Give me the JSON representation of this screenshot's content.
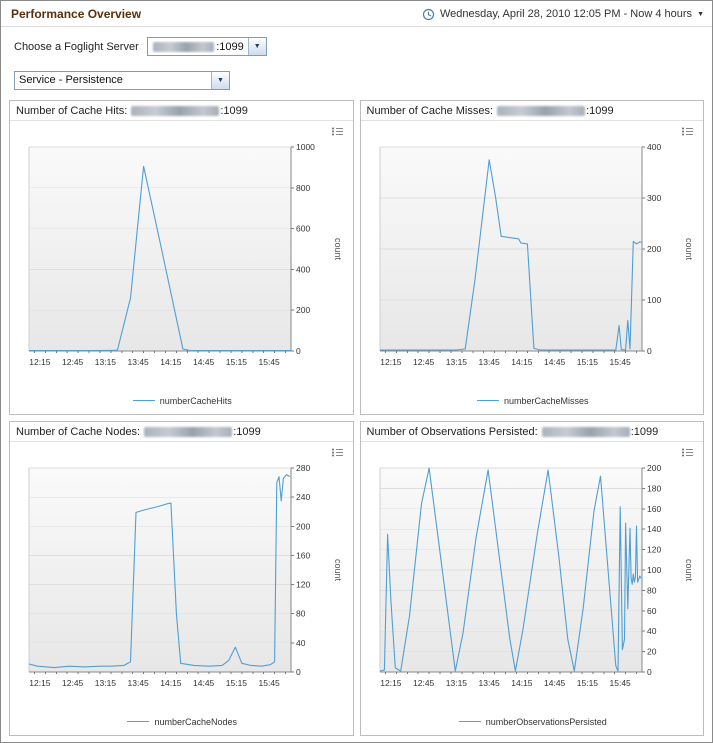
{
  "page": {
    "title": "Performance Overview"
  },
  "header": {
    "time_range": "Wednesday, April 28, 2010 12:05 PM - Now 4 hours"
  },
  "icons": {
    "caret_down": "▼"
  },
  "server_selector": {
    "label": "Choose a Foglight Server",
    "value_suffix": ":1099"
  },
  "service_selector": {
    "value": "Service - Persistence"
  },
  "chart_data": [
    {
      "type": "line",
      "title_prefix": "Number of Cache Hits:",
      "server_suffix": ":1099",
      "legend": "numberCacheHits",
      "ylabel": "count",
      "color": "#4f9fd4",
      "ylim": [
        0,
        1000
      ],
      "ytick_step": 200,
      "x_range_minutes": [
        725,
        965
      ],
      "x_tick_minutes": [
        735,
        765,
        795,
        825,
        855,
        885,
        915,
        945
      ],
      "x_tick_labels": [
        "12:15",
        "12:45",
        "13:15",
        "13:45",
        "14:15",
        "14:45",
        "15:15",
        "15:45"
      ],
      "points": [
        [
          725,
          2
        ],
        [
          745,
          2
        ],
        [
          765,
          2
        ],
        [
          785,
          2
        ],
        [
          800,
          3
        ],
        [
          806,
          4
        ],
        [
          818,
          260
        ],
        [
          830,
          905
        ],
        [
          842,
          610
        ],
        [
          855,
          285
        ],
        [
          866,
          10
        ],
        [
          872,
          3
        ],
        [
          890,
          2
        ],
        [
          910,
          2
        ],
        [
          930,
          2
        ],
        [
          950,
          2
        ],
        [
          965,
          2
        ]
      ]
    },
    {
      "type": "line",
      "title_prefix": "Number of Cache Misses:",
      "server_suffix": ":1099",
      "legend": "numberCacheMisses",
      "ylabel": "count",
      "color": "#4f9fd4",
      "ylim": [
        0,
        400
      ],
      "ytick_step": 100,
      "x_range_minutes": [
        725,
        965
      ],
      "x_tick_minutes": [
        735,
        765,
        795,
        825,
        855,
        885,
        915,
        945
      ],
      "x_tick_labels": [
        "12:15",
        "12:45",
        "13:15",
        "13:45",
        "14:15",
        "14:45",
        "15:15",
        "15:45"
      ],
      "points": [
        [
          725,
          2
        ],
        [
          750,
          2
        ],
        [
          775,
          2
        ],
        [
          795,
          2
        ],
        [
          803,
          4
        ],
        [
          812,
          140
        ],
        [
          825,
          375
        ],
        [
          831,
          300
        ],
        [
          836,
          225
        ],
        [
          845,
          222
        ],
        [
          852,
          220
        ],
        [
          854,
          212
        ],
        [
          860,
          210
        ],
        [
          866,
          5
        ],
        [
          872,
          2
        ],
        [
          890,
          2
        ],
        [
          910,
          2
        ],
        [
          930,
          2
        ],
        [
          941,
          2
        ],
        [
          944,
          50
        ],
        [
          946,
          3
        ],
        [
          950,
          2
        ],
        [
          952,
          60
        ],
        [
          954,
          4
        ],
        [
          957,
          215
        ],
        [
          960,
          210
        ],
        [
          963,
          214
        ],
        [
          965,
          213
        ]
      ]
    },
    {
      "type": "line",
      "title_prefix": "Number of Cache Nodes:",
      "server_suffix": ":1099",
      "legend": "numberCacheNodes",
      "ylabel": "count",
      "color": "#4f9fd4",
      "ylim": [
        0,
        280
      ],
      "ytick_step": 40,
      "x_range_minutes": [
        725,
        965
      ],
      "x_tick_minutes": [
        735,
        765,
        795,
        825,
        855,
        885,
        915,
        945
      ],
      "x_tick_labels": [
        "12:15",
        "12:45",
        "13:15",
        "13:45",
        "14:15",
        "14:45",
        "15:15",
        "15:45"
      ],
      "points": [
        [
          725,
          11
        ],
        [
          733,
          8
        ],
        [
          748,
          6
        ],
        [
          762,
          8
        ],
        [
          776,
          7
        ],
        [
          790,
          8
        ],
        [
          800,
          8
        ],
        [
          812,
          9
        ],
        [
          818,
          14
        ],
        [
          823,
          219
        ],
        [
          832,
          223
        ],
        [
          843,
          227
        ],
        [
          852,
          231
        ],
        [
          855,
          232
        ],
        [
          860,
          80
        ],
        [
          864,
          12
        ],
        [
          876,
          9
        ],
        [
          890,
          8
        ],
        [
          902,
          9
        ],
        [
          908,
          16
        ],
        [
          914,
          34
        ],
        [
          920,
          12
        ],
        [
          928,
          9
        ],
        [
          938,
          8
        ],
        [
          946,
          10
        ],
        [
          950,
          14
        ],
        [
          952,
          260
        ],
        [
          954,
          268
        ],
        [
          956,
          235
        ],
        [
          958,
          266
        ],
        [
          961,
          271
        ],
        [
          964,
          268
        ]
      ]
    },
    {
      "type": "line",
      "title_prefix": "Number of Observations Persisted:",
      "server_suffix": ":1099",
      "legend": "numberObservationsPersisted",
      "ylabel": "count",
      "color": "#4f9fd4",
      "ylim": [
        0,
        200
      ],
      "ytick_step": 20,
      "x_range_minutes": [
        725,
        965
      ],
      "x_tick_minutes": [
        735,
        765,
        795,
        825,
        855,
        885,
        915,
        945
      ],
      "x_tick_labels": [
        "12:15",
        "12:45",
        "13:15",
        "13:45",
        "14:15",
        "14:45",
        "15:15",
        "15:45"
      ],
      "points": [
        [
          725,
          1
        ],
        [
          729,
          2
        ],
        [
          732,
          135
        ],
        [
          735,
          70
        ],
        [
          739,
          4
        ],
        [
          744,
          1
        ],
        [
          752,
          55
        ],
        [
          763,
          165
        ],
        [
          770,
          200
        ],
        [
          779,
          125
        ],
        [
          789,
          42
        ],
        [
          794,
          1
        ],
        [
          801,
          38
        ],
        [
          813,
          132
        ],
        [
          824,
          198
        ],
        [
          834,
          115
        ],
        [
          844,
          32
        ],
        [
          849,
          1
        ],
        [
          856,
          42
        ],
        [
          869,
          135
        ],
        [
          879,
          198
        ],
        [
          889,
          112
        ],
        [
          897,
          32
        ],
        [
          903,
          1
        ],
        [
          911,
          62
        ],
        [
          921,
          158
        ],
        [
          927,
          192
        ],
        [
          935,
          85
        ],
        [
          941,
          6
        ],
        [
          943,
          1
        ],
        [
          945,
          162
        ],
        [
          947,
          22
        ],
        [
          949,
          32
        ],
        [
          950,
          146
        ],
        [
          952,
          62
        ],
        [
          954,
          141
        ],
        [
          955,
          92
        ],
        [
          956,
          86
        ],
        [
          957,
          96
        ],
        [
          958,
          88
        ],
        [
          959,
          93
        ],
        [
          960,
          143
        ],
        [
          961,
          88
        ],
        [
          962,
          91
        ],
        [
          963,
          94
        ],
        [
          964,
          92
        ]
      ]
    }
  ]
}
